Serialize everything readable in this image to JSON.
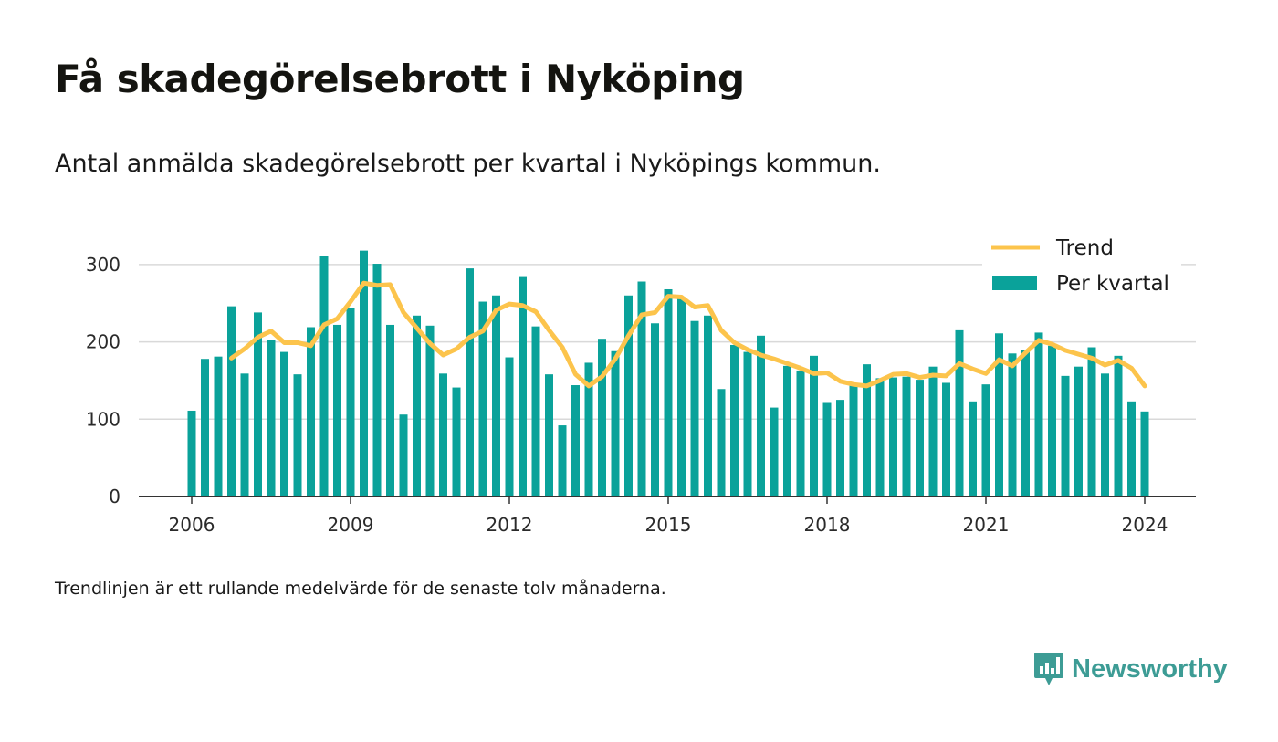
{
  "title": "Få skadegörelsebrott i Nyköping",
  "subtitle": "Antal anmälda skadegörelsebrott per kvartal i Nyköpings kommun.",
  "note": "Trendlinjen är ett rullande medelvärde för de senaste tolv månaderna.",
  "brand": {
    "name": "Newsworthy",
    "icon": "newsworthy-logo-icon"
  },
  "colors": {
    "bars": "#0aa29a",
    "trend": "#fcc44c",
    "grid": "#d9d9d9",
    "axis": "#333333",
    "brand": "#3d9c95"
  },
  "chart_data": {
    "type": "bar",
    "x_start": "2006-Q1",
    "x_ticks": [
      "2006",
      "2009",
      "2012",
      "2015",
      "2018",
      "2021",
      "2024"
    ],
    "y_ticks": [
      0,
      100,
      200,
      300
    ],
    "ylim": [
      0,
      340
    ],
    "grid": true,
    "legend_position": "top-right",
    "series": [
      {
        "name": "Per kvartal",
        "type": "bar",
        "values": [
          111,
          178,
          181,
          246,
          159,
          238,
          203,
          187,
          158,
          219,
          311,
          222,
          244,
          318,
          301,
          222,
          106,
          234,
          221,
          159,
          141,
          295,
          252,
          260,
          180,
          285,
          220,
          158,
          92,
          144,
          173,
          204,
          188,
          260,
          278,
          224,
          268,
          258,
          227,
          234,
          139,
          196,
          187,
          208,
          115,
          169,
          163,
          182,
          121,
          125,
          146,
          171,
          153,
          154,
          155,
          151,
          168,
          147,
          215,
          123,
          145,
          211,
          185,
          190,
          212,
          195,
          156,
          168,
          193,
          159,
          182,
          123,
          110
        ]
      },
      {
        "name": "Trend",
        "type": "line",
        "values": [
          null,
          null,
          null,
          179,
          191,
          206,
          214,
          199,
          199,
          195,
          222,
          230,
          252,
          276,
          273,
          274,
          238,
          218,
          198,
          183,
          191,
          206,
          214,
          241,
          249,
          247,
          239,
          215,
          193,
          158,
          143,
          155,
          178,
          208,
          235,
          238,
          259,
          258,
          245,
          247,
          215,
          199,
          190,
          183,
          178,
          172,
          166,
          159,
          160,
          149,
          145,
          143,
          150,
          158,
          159,
          154,
          157,
          156,
          172,
          165,
          159,
          177,
          169,
          186,
          202,
          197,
          189,
          184,
          179,
          170,
          176,
          166,
          143
        ]
      }
    ]
  }
}
